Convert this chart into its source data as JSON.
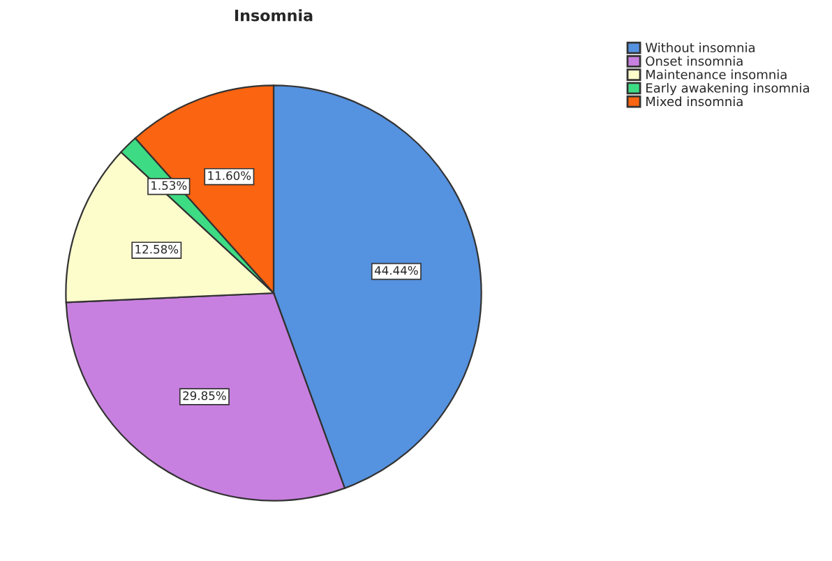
{
  "chart_data": {
    "type": "pie",
    "title": "Insomnia",
    "categories": [
      "Without insomnia",
      "Onset insomnia",
      "Maintenance insomnia",
      "Early awakening insomnia",
      "Mixed insomnia"
    ],
    "values": [
      44.44,
      29.85,
      12.58,
      1.53,
      11.6
    ],
    "colors": [
      "#5592e0",
      "#c880e0",
      "#fdfdcc",
      "#3ddc84",
      "#fb6410"
    ],
    "value_labels": [
      "44.44%",
      "29.85%",
      "12.58%",
      "1.53%",
      "11.60%"
    ],
    "legend": "top right"
  }
}
